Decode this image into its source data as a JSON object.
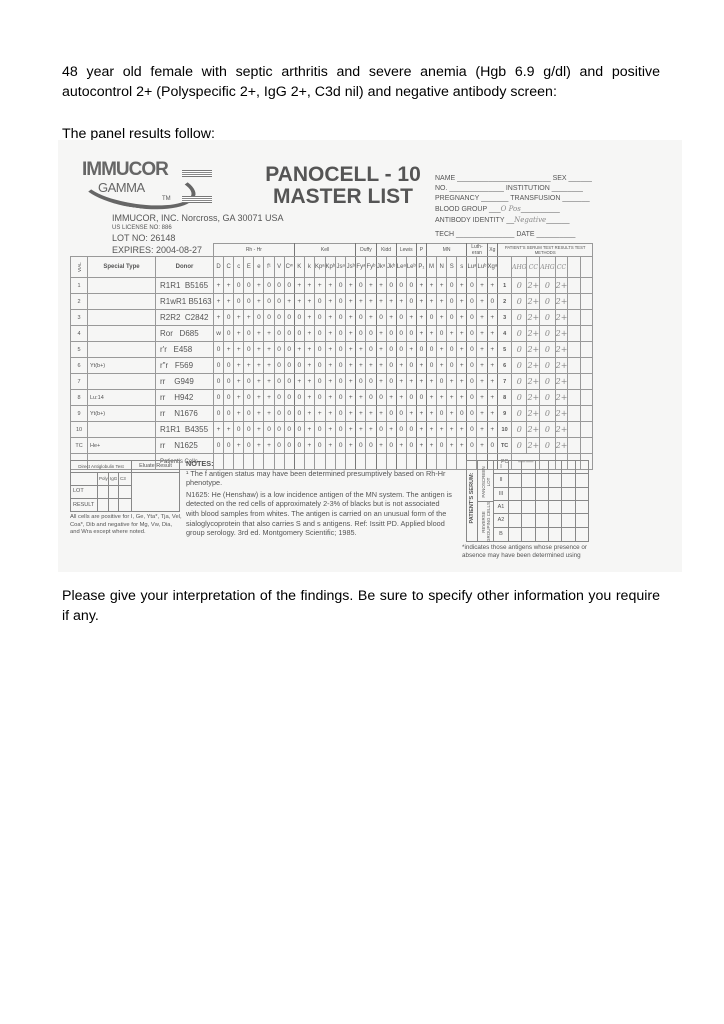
{
  "intro": "48 year old female with septic arthritis and severe anemia (Hgb 6.9 g/dl) and positive autocontrol 2+ (Polyspecific 2+, IgG 2+, C3d nil) and negative antibody screen:",
  "lead": "The panel results follow:",
  "closing": "Please give your interpretation of the findings.  Be sure to specify other information you require if any.",
  "sheet": {
    "logo": {
      "main": "IMMUCOR",
      "sub": "GAMMA",
      "tm": "TM"
    },
    "title_line1": "PANOCELL  - 10",
    "title_line2": "MASTER LIST",
    "company": "IMMUCOR, INC.  Norcross, GA  30071   USA",
    "license": "US LICENSE NO: 886",
    "lot": "LOT NO: 26148",
    "expires": "EXPIRES:    2004-08-27",
    "fields": {
      "name": "NAME",
      "sex": "SEX",
      "no": "NO.",
      "institution": "INSTITUTION",
      "pregnancy": "PREGNANCY",
      "transfusion": "TRANSFUSION",
      "blood_group": "BLOOD GROUP",
      "blood_group_value": "O Pos",
      "antibody_identity": "ANTIBODY IDENTITY",
      "antibody_identity_value": "Negative",
      "tech": "TECH",
      "date": "DATE"
    },
    "groups": [
      "Rh - Hr",
      "Kell",
      "Duffy",
      "Kidd",
      "Lewis",
      "P",
      "MN",
      "Luth-eran",
      "Xg",
      "PATIENT'S SERUM TEST RESULTS TEST METHODS"
    ],
    "columns": {
      "vial": "VIAL",
      "special": "Special Type",
      "donor": "Donor",
      "antigens": [
        "D",
        "C",
        "c",
        "E",
        "e",
        "f¹",
        "V",
        "Cʷ",
        "K",
        "k",
        "Kpᵃ",
        "Kpᵇ",
        "Jsᵃ",
        "Jsᵇ",
        "Fyᵃ",
        "Fyᵇ",
        "Jkᵃ",
        "Jkᵇ",
        "Leᵃ",
        "Leᵇ",
        "P₁",
        "M",
        "N",
        "S",
        "s",
        "Luᵃ",
        "Luᵇ",
        "Xgᵃ"
      ],
      "methods": [
        "AHG",
        "CC",
        "AHG",
        "CC",
        "",
        ""
      ]
    },
    "rows": [
      {
        "vial": "1",
        "special": "",
        "donor": "R1R1  B5165",
        "antigens": "+ + 0 0 + 0 0 0 + + + + 0 + 0 + + 0 0 0 + + + 0 + 0 + +",
        "results": [
          "0",
          "2+",
          "0",
          "2+",
          "",
          ""
        ]
      },
      {
        "vial": "2",
        "special": "",
        "donor": "R1wR1 B5163",
        "antigens": "+ + 0 0 + 0 0 + + + 0 + 0 + + + + + + 0 + + + 0 + 0 + 0",
        "results": [
          "0",
          "2+",
          "0",
          "2+",
          "",
          ""
        ]
      },
      {
        "vial": "3",
        "special": "",
        "donor": "R2R2  C2842",
        "antigens": "+ 0 + + 0 0 0 0 0 + 0 + 0 + 0 + 0 + 0 + + 0 + 0 + 0 + +",
        "results": [
          "0",
          "2+",
          "0",
          "2+",
          "",
          ""
        ]
      },
      {
        "vial": "4",
        "special": "",
        "donor": "Ror   D685",
        "antigens": "w 0 + 0 + + 0 0 0 + 0 + 0 + 0 0 + 0 0 0 + + 0 + + 0 + +",
        "results": [
          "0",
          "2+",
          "0",
          "2+",
          "",
          ""
        ]
      },
      {
        "vial": "5",
        "special": "",
        "donor": "r'r   E458",
        "antigens": "0 + + 0 + + 0 0 + + 0 + 0 + + 0 + 0 0 + 0 0 + 0 + 0 + +",
        "results": [
          "0",
          "2+",
          "0",
          "2+",
          "",
          ""
        ]
      },
      {
        "vial": "6",
        "special": "Yt(b+)",
        "donor": "r\"r   F569",
        "antigens": "0 0 + + + + 0 0 0 + 0 + 0 + + + + 0 + 0 + 0 + 0 + 0 + +",
        "results": [
          "0",
          "2+",
          "0",
          "2+",
          "",
          ""
        ]
      },
      {
        "vial": "7",
        "special": "",
        "donor": "rr    G949",
        "antigens": "0 0 + 0 + + 0 0 + + 0 + 0 + 0 0 + 0 + + + + 0 + + 0 + +",
        "results": [
          "0",
          "2+",
          "0",
          "2+",
          "",
          ""
        ]
      },
      {
        "vial": "8",
        "special": "Lu:14",
        "donor": "rr    H942",
        "antigens": "0 0 + 0 + + 0 0 0 + 0 + 0 + + 0 0 + + 0 0 + + + + 0 + +",
        "results": [
          "0",
          "2+",
          "0",
          "2+",
          "",
          ""
        ]
      },
      {
        "vial": "9",
        "special": "Yt(b+)",
        "donor": "rr    N1676",
        "antigens": "0 0 + 0 + + 0 0 0 + + + 0 + + + + 0 0 + + + 0 + 0 0 + +",
        "results": [
          "0",
          "2+",
          "0",
          "2+",
          "",
          ""
        ]
      },
      {
        "vial": "10",
        "special": "",
        "donor": "R1R1  B4355",
        "antigens": "+ + 0 0 + 0 0 0 0 + 0 + 0 + + + 0 + 0 0 + + + + + 0 + +",
        "results": [
          "0",
          "2+",
          "0",
          "2+",
          "",
          ""
        ]
      },
      {
        "vial": "TC",
        "special": "He+",
        "donor": "rr    N1625",
        "antigens": "0 0 + 0 + + 0 0 0 + 0 + 0 + 0 0 + 0 + 0 + + 0 + + 0 + 0",
        "results": [
          "0",
          "2+",
          "0",
          "2+",
          "",
          ""
        ]
      }
    ],
    "patient_cells": "Patient's Cells",
    "pc_label": "PC",
    "pc_result": "——",
    "dat": {
      "title": "Direct Antiglobulin Test",
      "eluate": "Eluate Result",
      "cols": [
        "Poly",
        "IgG",
        "C3"
      ],
      "lot": "LOT",
      "result": "RESULT"
    },
    "notes_title": "NOTES:",
    "notes": [
      "¹ The f antigen status may have been determined presumptively  based on Rh-Hr phenotype.",
      "N1625: He (Henshaw) is a low incidence antigen of the MN system.  The antigen is detected on the red cells of approximately 2-3% of blacks but is not associated with blood samples from whites.  The antigen is carried on an unusual form of the sialoglycoprotein that also carries S and s antigens.  Ref:  Issitt PD.  Applied blood group serology.  3rd ed.  Montgomery Scientific; 1985."
    ],
    "all_cells": "All cells are positive for I, Ge, Yta*, Tja, Vel, Coa*, Dib and negative for Mg, Vw, Dia, and Wra  except where noted.",
    "screen": {
      "side": "PATIENT'S SERUM:",
      "panoscreen": "PANOSCREEN LOT",
      "reverse": "REVERSE GROUPING CELLS",
      "cells": [
        "I",
        "II",
        "III",
        "A1",
        "A2",
        "B"
      ]
    },
    "footnote": "*indicates those antigens whose presence or absence may have been determined using"
  }
}
